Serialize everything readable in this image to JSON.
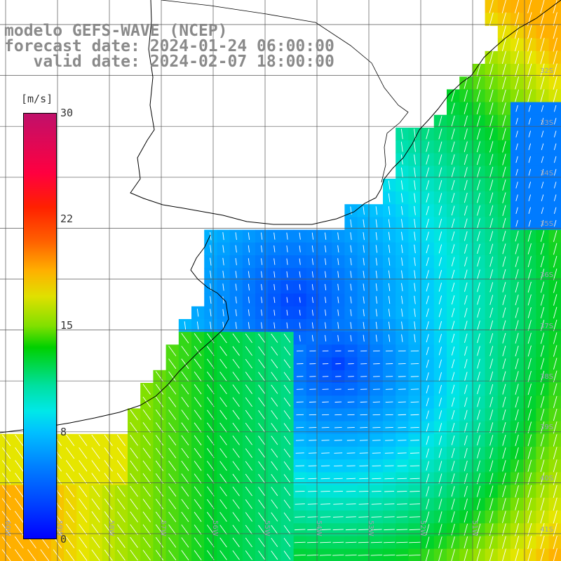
{
  "title": {
    "line1": "modelo GEFS-WAVE (NCEP)",
    "line2": "forecast date: 2024-01-24 06:00:00",
    "line3": "   valid date: 2024-02-07 18:00:00"
  },
  "legend": {
    "unit": "[m/s]",
    "ticks": [
      {
        "label": "30",
        "value": 30
      },
      {
        "label": "22",
        "value": 22
      },
      {
        "label": "15",
        "value": 15
      },
      {
        "label": "8",
        "value": 8
      },
      {
        "label": "0",
        "value": 0
      }
    ]
  },
  "lat_labels": [
    "32S",
    "33S",
    "34S",
    "35S",
    "36S",
    "37S",
    "38S",
    "39S",
    "40S",
    "41S"
  ],
  "lon_labels": [
    "60W",
    "59W",
    "58W",
    "57W",
    "56W",
    "55W",
    "54W",
    "53W",
    "52W",
    "51W"
  ],
  "colors": {
    "land": "#ffffff",
    "coast": "#000000",
    "grid": "#555555",
    "arrows": "#ffffff",
    "title": "#8a8a8a"
  }
}
